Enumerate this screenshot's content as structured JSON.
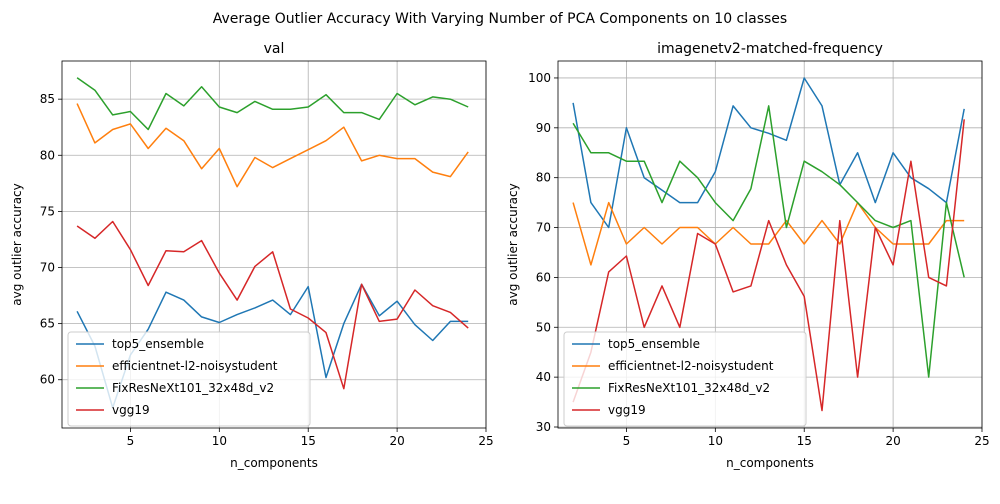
{
  "figure": {
    "suptitle": "Average Outlier Accuracy With Varying Number of PCA Components on 10 classes"
  },
  "colors": {
    "top5_ensemble": "#1f77b4",
    "efficientnet-l2-noisystudent": "#ff7f0e",
    "FixResNeXt101_32x48d_v2": "#2ca02c",
    "vgg19": "#d62728"
  },
  "chart_data": [
    {
      "type": "line",
      "title": "val",
      "xlabel": "n_components",
      "ylabel": "avg outlier accuracy",
      "xlim": [
        1.15,
        25.0
      ],
      "ylim": [
        55.7,
        88.4
      ],
      "xticks": [
        5,
        10,
        15,
        20,
        25
      ],
      "yticks": [
        60,
        65,
        70,
        75,
        80,
        85
      ],
      "grid": true,
      "legend_position": "lower-left",
      "x": [
        2,
        3,
        4,
        5,
        6,
        7,
        8,
        9,
        10,
        11,
        12,
        13,
        14,
        15,
        16,
        17,
        18,
        19,
        20,
        21,
        22,
        23,
        24
      ],
      "series": [
        {
          "name": "top5_ensemble",
          "values": [
            66.1,
            63.0,
            57.5,
            62.2,
            64.5,
            67.8,
            67.1,
            65.6,
            65.1,
            65.8,
            66.4,
            67.1,
            65.8,
            68.3,
            60.2,
            65.0,
            68.5,
            65.7,
            67.0,
            64.9,
            63.5,
            65.2,
            65.2
          ]
        },
        {
          "name": "efficientnet-l2-noisystudent",
          "values": [
            84.6,
            81.1,
            82.3,
            82.8,
            80.6,
            82.4,
            81.3,
            78.8,
            80.6,
            77.2,
            79.8,
            78.9,
            79.7,
            80.5,
            81.3,
            82.5,
            79.5,
            80.0,
            79.7,
            79.7,
            78.5,
            78.1,
            80.3
          ]
        },
        {
          "name": "FixResNeXt101_32x48d_v2",
          "values": [
            86.9,
            85.8,
            83.6,
            83.9,
            82.3,
            85.5,
            84.4,
            86.1,
            84.3,
            83.8,
            84.8,
            84.1,
            84.1,
            84.3,
            85.4,
            83.8,
            83.8,
            83.2,
            85.5,
            84.5,
            85.2,
            85.0,
            84.3
          ]
        },
        {
          "name": "vgg19",
          "values": [
            73.7,
            72.6,
            74.1,
            71.6,
            68.4,
            71.5,
            71.4,
            72.4,
            69.5,
            67.1,
            70.1,
            71.4,
            66.3,
            65.5,
            64.2,
            59.2,
            68.5,
            65.2,
            65.4,
            68.0,
            66.6,
            66.0,
            64.6
          ]
        }
      ]
    },
    {
      "type": "line",
      "title": "imagenetv2-matched-frequency",
      "xlabel": "n_components",
      "ylabel": "avg outlier accuracy",
      "xlim": [
        1.15,
        25.0
      ],
      "ylim": [
        29.8,
        103.4
      ],
      "xticks": [
        5,
        10,
        15,
        20,
        25
      ],
      "yticks": [
        30,
        40,
        50,
        60,
        70,
        80,
        90,
        100
      ],
      "grid": true,
      "legend_position": "lower-left",
      "x": [
        2,
        3,
        4,
        5,
        6,
        7,
        8,
        9,
        10,
        11,
        12,
        13,
        14,
        15,
        16,
        17,
        18,
        19,
        20,
        21,
        22,
        23,
        24
      ],
      "series": [
        {
          "name": "top5_ensemble",
          "values": [
            95.0,
            75.0,
            70.0,
            90.0,
            80.0,
            77.5,
            75.0,
            75.0,
            81.2,
            94.4,
            90.0,
            88.9,
            87.5,
            100.0,
            94.4,
            78.6,
            85.0,
            75.0,
            85.0,
            80.0,
            77.8,
            75.0,
            93.8
          ]
        },
        {
          "name": "efficientnet-l2-noisystudent",
          "values": [
            75.0,
            62.5,
            75.0,
            66.7,
            70.0,
            66.7,
            70.0,
            70.0,
            66.7,
            70.0,
            66.7,
            66.7,
            71.4,
            66.7,
            71.4,
            66.7,
            75.0,
            70.0,
            66.7,
            66.7,
            66.7,
            71.4,
            71.4
          ]
        },
        {
          "name": "FixResNeXt101_32x48d_v2",
          "values": [
            90.9,
            85.0,
            85.0,
            83.3,
            83.3,
            75.0,
            83.3,
            80.0,
            75.0,
            71.4,
            77.8,
            94.4,
            70.0,
            83.3,
            81.2,
            78.6,
            75.0,
            71.4,
            70.0,
            71.4,
            40.0,
            75.0,
            60.0
          ]
        },
        {
          "name": "vgg19",
          "values": [
            35.0,
            45.0,
            61.1,
            64.3,
            50.0,
            58.3,
            50.0,
            68.8,
            66.7,
            57.1,
            58.3,
            71.4,
            62.5,
            56.2,
            33.3,
            71.4,
            40.0,
            70.0,
            62.5,
            83.3,
            60.0,
            58.3,
            91.7
          ]
        }
      ]
    }
  ]
}
